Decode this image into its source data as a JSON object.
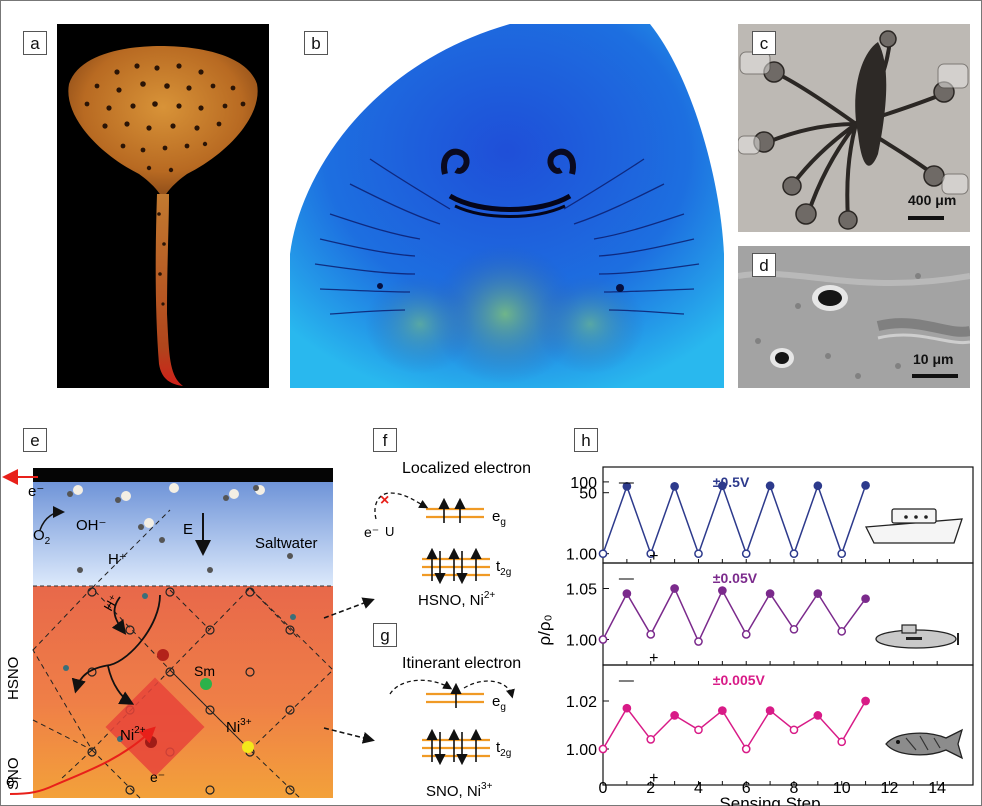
{
  "panels": {
    "a": {
      "tag": "a"
    },
    "b": {
      "tag": "b"
    },
    "c": {
      "tag": "c",
      "scale": "400 μm"
    },
    "d": {
      "tag": "d",
      "scale": "10 μm"
    },
    "e": {
      "tag": "e",
      "electron_top": "e⁻",
      "oxygen": "O",
      "oxygen_sub": "2",
      "hydroxide": "OH⁻",
      "field": "E",
      "proton": "H⁺",
      "proton_arrow": "H⁺",
      "saltwater": "Saltwater",
      "layer_hsno": "HSNO",
      "layer_sno": "SNO",
      "sm": "Sm",
      "ni2": "Ni",
      "ni2_sup": "2+",
      "ni3": "Ni",
      "ni3_sup": "3+",
      "electron_inner": "e⁻",
      "electron_bottom": "e⁻"
    },
    "f": {
      "tag": "f",
      "title": "Localized electron",
      "e_minus": "e⁻",
      "u_label": "U",
      "eg": "e",
      "eg_sub": "g",
      "t2g": "t",
      "t2g_sub": "2g",
      "caption": "HSNO, Ni",
      "caption_sup": "2+"
    },
    "g": {
      "tag": "g",
      "title": "Itinerant electron",
      "eg": "e",
      "eg_sub": "g",
      "t2g": "t",
      "t2g_sub": "2g",
      "caption": "SNO, Ni",
      "caption_sup": "3+"
    },
    "h": {
      "tag": "h",
      "minus": "—",
      "plus": "+"
    }
  },
  "chart_data": {
    "type": "line",
    "xlabel": "Sensing Step",
    "ylabel": "ρ/ρ₀",
    "xlim": [
      0,
      15.5
    ],
    "xticks": [
      "0",
      "2",
      "4",
      "6",
      "8",
      "10",
      "12",
      "14"
    ],
    "x": [
      0,
      1,
      2,
      3,
      4,
      5,
      6,
      7,
      8,
      9,
      10,
      11
    ],
    "subplots": [
      {
        "name": "±0.5V",
        "color": "#2d3a8c",
        "scale": "log",
        "yticks": [
          "100",
          "50",
          "1.00"
        ],
        "y": [
          1.0,
          75,
          1.0,
          75,
          1.0,
          78,
          1.0,
          78,
          1.0,
          78,
          1.0,
          80
        ]
      },
      {
        "name": "±0.05V",
        "color": "#7b2a8c",
        "scale": "linear",
        "ylim": [
          0.975,
          1.075
        ],
        "yticks": [
          "1.05",
          "1.00"
        ],
        "y": [
          1.0,
          1.045,
          1.005,
          1.05,
          0.998,
          1.048,
          1.005,
          1.045,
          1.01,
          1.045,
          1.008,
          1.04
        ]
      },
      {
        "name": "±0.005V",
        "color": "#d81b87",
        "scale": "linear",
        "ylim": [
          0.985,
          1.035
        ],
        "yticks": [
          "1.02",
          "1.00"
        ],
        "y": [
          1.0,
          1.017,
          1.004,
          1.014,
          1.008,
          1.016,
          1.0,
          1.016,
          1.008,
          1.014,
          1.003,
          1.02
        ]
      }
    ]
  }
}
